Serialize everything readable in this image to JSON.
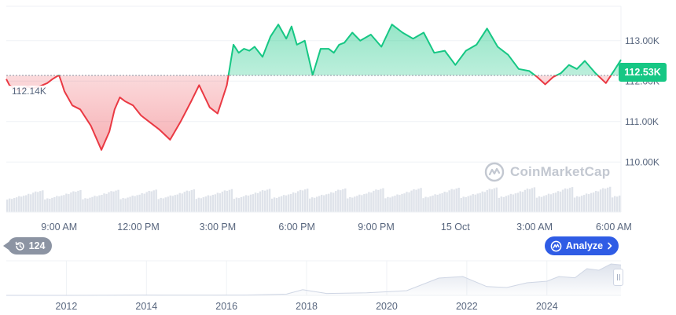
{
  "chart_data": {
    "type": "line",
    "current_price_label": "112.53K",
    "open_price_label": "112.14K",
    "open_price": 112140,
    "ylim": [
      109500,
      113850
    ],
    "y_ticks": [
      {
        "label": "113.00K",
        "value": 113000
      },
      {
        "label": "112.00K",
        "value": 112000
      },
      {
        "label": "111.00K",
        "value": 111000
      },
      {
        "label": "110.00K",
        "value": 110000
      }
    ],
    "x_ticks": [
      "9:00 AM",
      "12:00 PM",
      "3:00 PM",
      "6:00 PM",
      "9:00 PM",
      "15 Oct",
      "3:00 AM",
      "6:00 AM"
    ],
    "x_tick_hours": [
      9,
      12,
      15,
      18,
      21,
      24,
      27,
      30
    ],
    "x_range_hours": [
      7.0,
      30.27
    ],
    "series": [
      {
        "x_hours": [
          7.0,
          7.12,
          7.35,
          7.55,
          7.8,
          8.0,
          8.3,
          8.55,
          8.75,
          8.92,
          9.0,
          9.1,
          9.2,
          9.5,
          9.8,
          10.2,
          10.6,
          10.9,
          11.1,
          11.3,
          11.5,
          11.8,
          12.1,
          12.4,
          12.8,
          13.2,
          13.6,
          14.0,
          14.3,
          14.7,
          15.0,
          15.2,
          15.35,
          15.45,
          15.6,
          15.8,
          16.0,
          16.2,
          16.4,
          16.7,
          17.0,
          17.3,
          17.6,
          17.8,
          18.0,
          18.3,
          18.6,
          18.9,
          19.2,
          19.4,
          19.6,
          19.8,
          20.1,
          20.4,
          20.8,
          21.2,
          21.6,
          22.0,
          22.4,
          22.8,
          23.2,
          23.6,
          24.0,
          24.4,
          24.8,
          25.2,
          25.6,
          26.0,
          26.4,
          26.8,
          27.1,
          27.4,
          27.7,
          28.0,
          28.3,
          28.6,
          28.9,
          29.3,
          29.7,
          30.0,
          30.27
        ],
        "values": [
          112050,
          111900,
          111800,
          111750,
          111870,
          111820,
          111880,
          111950,
          112050,
          112120,
          112140,
          111950,
          111750,
          111400,
          111300,
          110900,
          110300,
          110750,
          111300,
          111600,
          111500,
          111400,
          111150,
          111000,
          110800,
          110550,
          111000,
          111500,
          111900,
          111350,
          111200,
          111600,
          111900,
          112300,
          112900,
          112700,
          112800,
          112750,
          112850,
          112600,
          113100,
          113400,
          113050,
          113350,
          112900,
          113000,
          112150,
          112800,
          112800,
          112700,
          112900,
          112950,
          113200,
          113000,
          113150,
          112850,
          113400,
          113200,
          113050,
          113200,
          112700,
          112750,
          112400,
          112750,
          112900,
          113300,
          112850,
          112650,
          112300,
          112250,
          112100,
          111920,
          112100,
          112200,
          112400,
          112300,
          112500,
          112200,
          111950,
          112250,
          112530
        ]
      }
    ],
    "volume_bars": 260,
    "volume_pattern": [
      0.55,
      0.6,
      0.58,
      0.62,
      0.65,
      0.7,
      0.68,
      0.72,
      0.74,
      0.8,
      0.78,
      0.85,
      0.9,
      0.88,
      0.92,
      0.95
    ],
    "colors": {
      "up": "#16c784",
      "down": "#ea3943",
      "grid": "#eff2f5",
      "axis_text": "#58667e",
      "navigator_line": "#cfd6e4"
    },
    "navigator": {
      "x_labels": [
        "2012",
        "2014",
        "2016",
        "2018",
        "2020",
        "2022",
        "2024"
      ],
      "x_years": [
        2012,
        2014,
        2016,
        2018,
        2020,
        2022,
        2024
      ],
      "x_range_years": [
        2010.5,
        2025.85
      ],
      "years": [
        2010.5,
        2012.0,
        2013.0,
        2013.9,
        2014.5,
        2015.5,
        2016.5,
        2017.5,
        2017.9,
        2018.5,
        2019.5,
        2020.5,
        2021.3,
        2021.9,
        2022.5,
        2023.0,
        2023.5,
        2024.0,
        2024.3,
        2024.7,
        2025.0,
        2025.3,
        2025.6,
        2025.85
      ],
      "levels": [
        0.0,
        0.0,
        0.002,
        0.01,
        0.005,
        0.005,
        0.01,
        0.04,
        0.18,
        0.06,
        0.08,
        0.15,
        0.55,
        0.6,
        0.28,
        0.25,
        0.4,
        0.45,
        0.6,
        0.56,
        0.85,
        0.8,
        1.0,
        0.97
      ]
    }
  },
  "watermark": {
    "text": "CoinMarketCap"
  },
  "history_badge": {
    "count": "124"
  },
  "analyze_button": {
    "label": "Analyze"
  }
}
